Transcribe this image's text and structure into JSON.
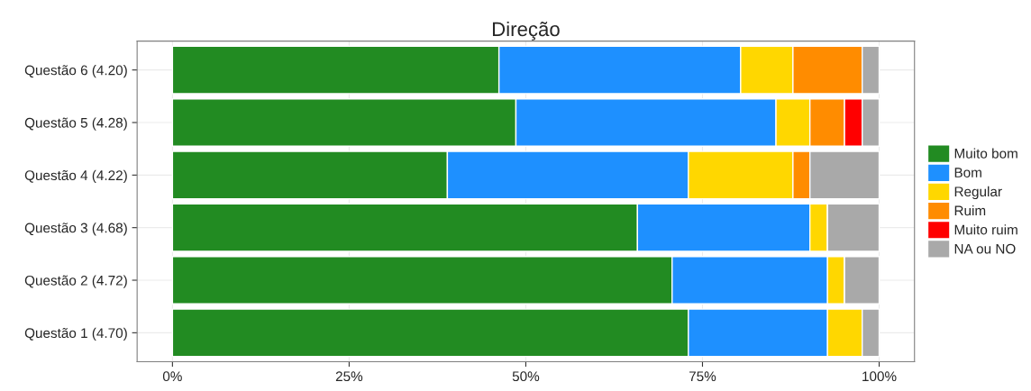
{
  "chart_data": {
    "type": "bar",
    "title": "Direção",
    "orientation": "horizontal",
    "stacked": true,
    "categories": [
      "Questão 6 (4.20)",
      "Questão 5 (4.28)",
      "Questão 4 (4.22)",
      "Questão 3 (4.68)",
      "Questão 2 (4.72)",
      "Questão 1 (4.70)"
    ],
    "series": [
      {
        "name": "Muito bom",
        "color": "#228b22",
        "values": [
          46.2,
          48.6,
          38.9,
          65.8,
          70.7,
          73.0
        ]
      },
      {
        "name": "Bom",
        "color": "#1e90ff",
        "values": [
          34.2,
          36.8,
          34.1,
          24.4,
          22.0,
          19.7
        ]
      },
      {
        "name": "Regular",
        "color": "#ffd700",
        "values": [
          7.4,
          4.8,
          14.8,
          2.5,
          2.4,
          4.9
        ]
      },
      {
        "name": "Ruim",
        "color": "#ff8c00",
        "values": [
          9.8,
          4.9,
          2.4,
          0,
          0,
          0
        ]
      },
      {
        "name": "Muito ruim",
        "color": "#ff0000",
        "values": [
          0,
          2.5,
          0,
          0,
          0,
          0
        ]
      },
      {
        "name": "NA ou NO",
        "color": "#a9a9a9",
        "values": [
          2.4,
          2.4,
          9.8,
          7.3,
          4.9,
          2.4
        ]
      }
    ],
    "xlim": [
      -5,
      105
    ],
    "xticks": [
      {
        "value": 0,
        "label": "0%"
      },
      {
        "value": 25,
        "label": "25%"
      },
      {
        "value": 50,
        "label": "50%"
      },
      {
        "value": 75,
        "label": "75%"
      },
      {
        "value": 100,
        "label": "100%"
      }
    ],
    "grid": true,
    "legend": "right"
  }
}
